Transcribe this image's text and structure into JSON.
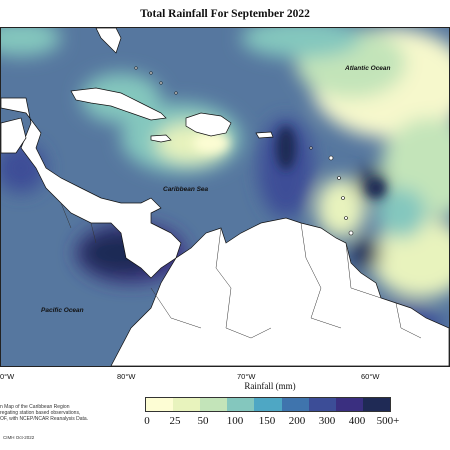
{
  "title": "Total Rainfall For September 2022",
  "map_labels": {
    "atlantic": "Atlantic Ocean",
    "caribbean": "Caribbean Sea",
    "pacific": "Pacific Ocean"
  },
  "longitude_labels": [
    "0°W",
    "80°W",
    "70°W",
    "60°W"
  ],
  "legend": {
    "title": "Rainfall (mm)",
    "ticks": [
      "0",
      "25",
      "50",
      "100",
      "150",
      "200",
      "300",
      "400",
      "500+"
    ],
    "colors": [
      "#fdfdd4",
      "#e8f3bd",
      "#c3e4b9",
      "#84c7be",
      "#4ea7c4",
      "#3f74ad",
      "#3c4d97",
      "#3a2f80",
      "#1f2a55"
    ]
  },
  "footnote": [
    "n Map of the Caribbean Region",
    "regating station based observations,",
    "OF, with NCEP/NCAR Reanalysis Data."
  ],
  "credit": "CIMH Oct-2022"
}
